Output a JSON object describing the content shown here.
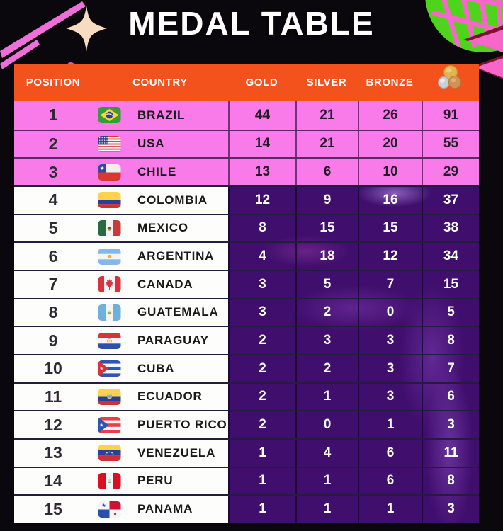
{
  "title": "MEDAL TABLE",
  "chart_data": {
    "type": "table",
    "columns": {
      "position": "POSITION",
      "country": "COUNTRY",
      "gold": "GOLD",
      "silver": "SILVER",
      "bronze": "BRONZE",
      "total_column_icon": "medals-icon"
    },
    "rows": [
      {
        "position": "1",
        "country": "BRAZIL",
        "flag": "brazil",
        "gold": "44",
        "silver": "21",
        "bronze": "26",
        "total": "91",
        "highlighted": true
      },
      {
        "position": "2",
        "country": "USA",
        "flag": "usa",
        "gold": "14",
        "silver": "21",
        "bronze": "20",
        "total": "55",
        "highlighted": true
      },
      {
        "position": "3",
        "country": "CHILE",
        "flag": "chile",
        "gold": "13",
        "silver": "6",
        "bronze": "10",
        "total": "29",
        "highlighted": true
      },
      {
        "position": "4",
        "country": "COLOMBIA",
        "flag": "colombia",
        "gold": "12",
        "silver": "9",
        "bronze": "16",
        "total": "37",
        "highlighted": false
      },
      {
        "position": "5",
        "country": "MEXICO",
        "flag": "mexico",
        "gold": "8",
        "silver": "15",
        "bronze": "15",
        "total": "38",
        "highlighted": false
      },
      {
        "position": "6",
        "country": "ARGENTINA",
        "flag": "argentina",
        "gold": "4",
        "silver": "18",
        "bronze": "12",
        "total": "34",
        "highlighted": false
      },
      {
        "position": "7",
        "country": "CANADA",
        "flag": "canada",
        "gold": "3",
        "silver": "5",
        "bronze": "7",
        "total": "15",
        "highlighted": false
      },
      {
        "position": "8",
        "country": "GUATEMALA",
        "flag": "guatemala",
        "gold": "3",
        "silver": "2",
        "bronze": "0",
        "total": "5",
        "highlighted": false
      },
      {
        "position": "9",
        "country": "PARAGUAY",
        "flag": "paraguay",
        "gold": "2",
        "silver": "3",
        "bronze": "3",
        "total": "8",
        "highlighted": false
      },
      {
        "position": "10",
        "country": "CUBA",
        "flag": "cuba",
        "gold": "2",
        "silver": "2",
        "bronze": "3",
        "total": "7",
        "highlighted": false
      },
      {
        "position": "11",
        "country": "ECUADOR",
        "flag": "ecuador",
        "gold": "2",
        "silver": "1",
        "bronze": "3",
        "total": "6",
        "highlighted": false
      },
      {
        "position": "12",
        "country": "PUERTO RICO",
        "flag": "puerto_rico",
        "gold": "2",
        "silver": "0",
        "bronze": "1",
        "total": "3",
        "highlighted": false
      },
      {
        "position": "13",
        "country": "VENEZUELA",
        "flag": "venezuela",
        "gold": "1",
        "silver": "4",
        "bronze": "6",
        "total": "11",
        "highlighted": false
      },
      {
        "position": "14",
        "country": "PERU",
        "flag": "peru",
        "gold": "1",
        "silver": "1",
        "bronze": "6",
        "total": "8",
        "highlighted": false
      },
      {
        "position": "15",
        "country": "PANAMA",
        "flag": "panama",
        "gold": "1",
        "silver": "1",
        "bronze": "1",
        "total": "3",
        "highlighted": false
      }
    ],
    "layout": {
      "highlight_note": "top 3 rows highlighted pink; remaining rows white labels with purple medal cells"
    }
  },
  "colors": {
    "background": "#0b080d",
    "header_orange": "#f4521c",
    "highlight_pink": "#f97ae9",
    "panel_purple": "#400e6d",
    "row_white": "#fdfdfb",
    "grid_line_dark": "#211d3c",
    "accent_green": "#4fd41c",
    "accent_pink": "#f767c8",
    "sparkle_cream": "#f8dcc2"
  },
  "decor": {
    "top_left": "sparkle-icon",
    "top_right": "tropical-leaf-icon",
    "total_header": "medals-icon"
  }
}
